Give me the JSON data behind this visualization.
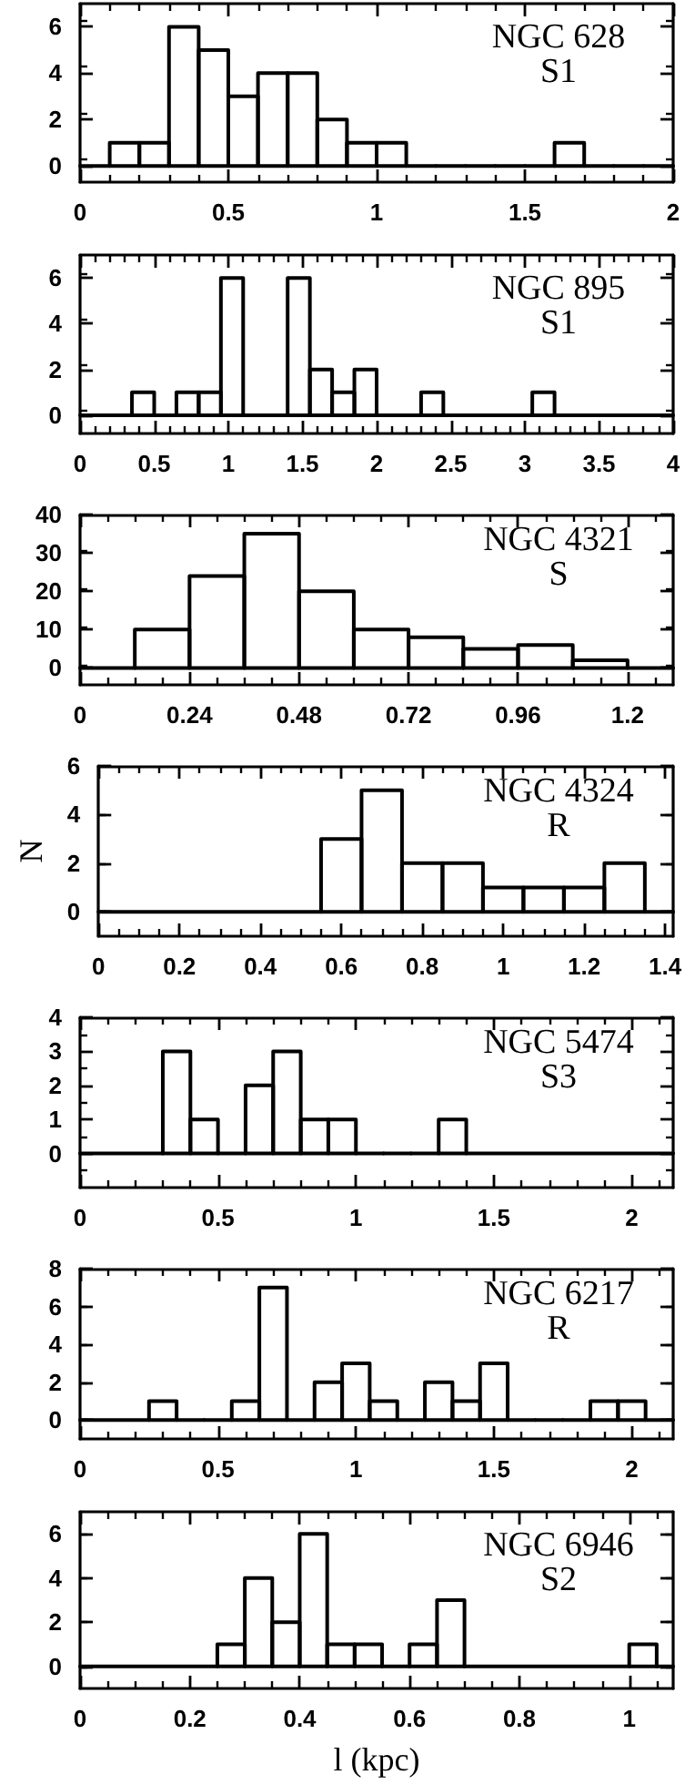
{
  "chart_data": [
    {
      "type": "histogram",
      "title": "NGC 628",
      "subtitle": "S1",
      "bins": [
        0,
        0.1,
        0.2,
        0.3,
        0.4,
        0.5,
        0.6,
        0.7,
        0.8,
        0.9,
        1.0,
        1.1,
        1.2,
        1.3,
        1.4,
        1.5,
        1.6,
        1.7,
        1.8,
        1.9,
        2.0
      ],
      "values": [
        0,
        1,
        1,
        6,
        5,
        3,
        4,
        4,
        2,
        1,
        1,
        0,
        0,
        0,
        0,
        0,
        1,
        0,
        0,
        0
      ],
      "color": "#000000",
      "xlim": [
        0,
        2
      ],
      "xticks": [
        0,
        0.5,
        1,
        1.5,
        2
      ],
      "ylim": [
        -0.7,
        7
      ],
      "yticks": [
        0,
        2,
        4,
        6
      ]
    },
    {
      "type": "histogram",
      "title": "NGC 895",
      "subtitle": "S1",
      "bins": [
        0,
        0.35,
        0.5,
        0.65,
        0.8,
        0.95,
        1.1,
        1.25,
        1.4,
        1.55,
        1.7,
        1.85,
        2.0,
        2.15,
        2.3,
        2.45,
        2.6,
        2.75,
        2.9,
        3.05,
        3.2,
        4.0
      ],
      "values": [
        0,
        1,
        0,
        1,
        1,
        6,
        0,
        0,
        6,
        2,
        1,
        2,
        0,
        0,
        1,
        0,
        0,
        0,
        0,
        1,
        0
      ],
      "color": "#000000",
      "xlim": [
        0,
        4
      ],
      "xticks": [
        0,
        0.5,
        1,
        1.5,
        2,
        2.5,
        3,
        3.5,
        4
      ],
      "ylim": [
        -0.8,
        7
      ],
      "yticks": [
        0,
        2,
        4,
        6
      ]
    },
    {
      "type": "histogram",
      "title": "NGC 4321",
      "subtitle": "S",
      "bins": [
        0,
        0.12,
        0.24,
        0.36,
        0.48,
        0.6,
        0.72,
        0.84,
        0.96,
        1.08,
        1.2,
        1.3
      ],
      "values": [
        0,
        10,
        24,
        35,
        20,
        10,
        8,
        5,
        6,
        2,
        0
      ],
      "color": "#000000",
      "xlim": [
        0,
        1.3
      ],
      "xticks": [
        0,
        0.24,
        0.48,
        0.72,
        0.96,
        1.2
      ],
      "ylim": [
        -4.4,
        40
      ],
      "yticks": [
        0,
        10,
        20,
        30,
        40
      ]
    },
    {
      "type": "histogram",
      "title": "NGC 4324",
      "subtitle": "R",
      "ylabel": "N",
      "bins": [
        0,
        0.55,
        0.65,
        0.75,
        0.85,
        0.95,
        1.05,
        1.15,
        1.25,
        1.35,
        1.42
      ],
      "values": [
        0,
        3,
        5,
        2,
        2,
        1,
        1,
        1,
        2,
        0
      ],
      "color": "#000000",
      "xlim": [
        0,
        1.42
      ],
      "xticks": [
        0,
        0.2,
        0.4,
        0.6,
        0.8,
        1,
        1.2,
        1.4
      ],
      "ylim": [
        -1,
        6
      ],
      "yticks": [
        0,
        2,
        4,
        6
      ]
    },
    {
      "type": "histogram",
      "title": "NGC 5474",
      "subtitle": "S3",
      "bins": [
        0,
        0.3,
        0.4,
        0.5,
        0.6,
        0.7,
        0.8,
        0.9,
        1.0,
        1.1,
        1.2,
        1.3,
        1.4,
        2.15
      ],
      "values": [
        0,
        3,
        1,
        0,
        2,
        3,
        1,
        1,
        0,
        0,
        0,
        1,
        0
      ],
      "color": "#000000",
      "xlim": [
        0,
        2.15
      ],
      "xticks": [
        0,
        0.5,
        1,
        1.5,
        2
      ],
      "ylim": [
        -1,
        4
      ],
      "yticks": [
        0,
        1,
        2,
        3,
        4
      ]
    },
    {
      "type": "histogram",
      "title": "NGC 6217",
      "subtitle": "R",
      "bins": [
        0,
        0.25,
        0.35,
        0.45,
        0.55,
        0.65,
        0.75,
        0.85,
        0.95,
        1.05,
        1.15,
        1.25,
        1.35,
        1.45,
        1.55,
        1.65,
        1.75,
        1.85,
        1.95,
        2.05,
        2.15
      ],
      "values": [
        0,
        1,
        0,
        0,
        1,
        7,
        0,
        2,
        3,
        1,
        0,
        2,
        1,
        3,
        0,
        0,
        0,
        1,
        1,
        0
      ],
      "color": "#000000",
      "xlim": [
        0,
        2.15
      ],
      "xticks": [
        0,
        0.5,
        1,
        1.5,
        2
      ],
      "ylim": [
        -1,
        8
      ],
      "yticks": [
        0,
        2,
        4,
        6,
        8
      ]
    },
    {
      "type": "histogram",
      "title": "NGC 6946",
      "subtitle": "S2",
      "xlabel": "l (kpc)",
      "bins": [
        0,
        0.25,
        0.3,
        0.35,
        0.4,
        0.45,
        0.5,
        0.55,
        0.6,
        0.65,
        0.7,
        1.0,
        1.05,
        1.08
      ],
      "values": [
        0,
        1,
        4,
        2,
        6,
        1,
        1,
        0,
        1,
        3,
        0,
        1,
        0
      ],
      "color": "#000000",
      "xlim": [
        0,
        1.08
      ],
      "xticks": [
        0,
        0.2,
        0.4,
        0.6,
        0.8,
        1
      ],
      "ylim": [
        -1,
        7
      ],
      "yticks": [
        0,
        2,
        4,
        6
      ]
    }
  ]
}
